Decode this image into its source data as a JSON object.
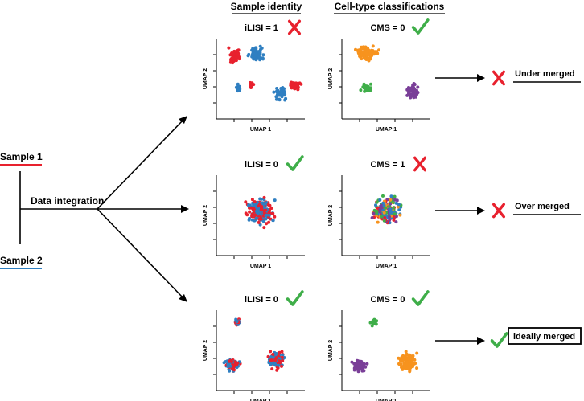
{
  "headers": {
    "sample_identity": "Sample identity",
    "cell_type": "Cell-type classifications"
  },
  "left": {
    "sample1": "Sample 1",
    "sample2": "Sample 2",
    "integration": "Data integration"
  },
  "axis": {
    "x": "UMAP 1",
    "y": "UMAP 2"
  },
  "rows": [
    {
      "ilisi": "iLISI = 1",
      "ilisi_mark": "cross",
      "cms": "CMS = 0",
      "cms_mark": "check",
      "outcome_mark": "cross",
      "outcome": "Under merged",
      "boxed": false
    },
    {
      "ilisi": "iLISI = 0",
      "ilisi_mark": "check",
      "cms": "CMS = 1",
      "cms_mark": "cross",
      "outcome_mark": "cross",
      "outcome": "Over merged",
      "boxed": false
    },
    {
      "ilisi": "iLISI = 0",
      "ilisi_mark": "check",
      "cms": "CMS = 0",
      "cms_mark": "check",
      "outcome_mark": "check",
      "outcome": "Ideally merged",
      "boxed": true
    }
  ],
  "colors": {
    "sample1": "#e8212e",
    "sample2": "#2f7fc1",
    "orange": "#f7931e",
    "green": "#3fae49",
    "purple": "#7a3f98",
    "cross": "#e8212e",
    "check": "#3fae49"
  }
}
